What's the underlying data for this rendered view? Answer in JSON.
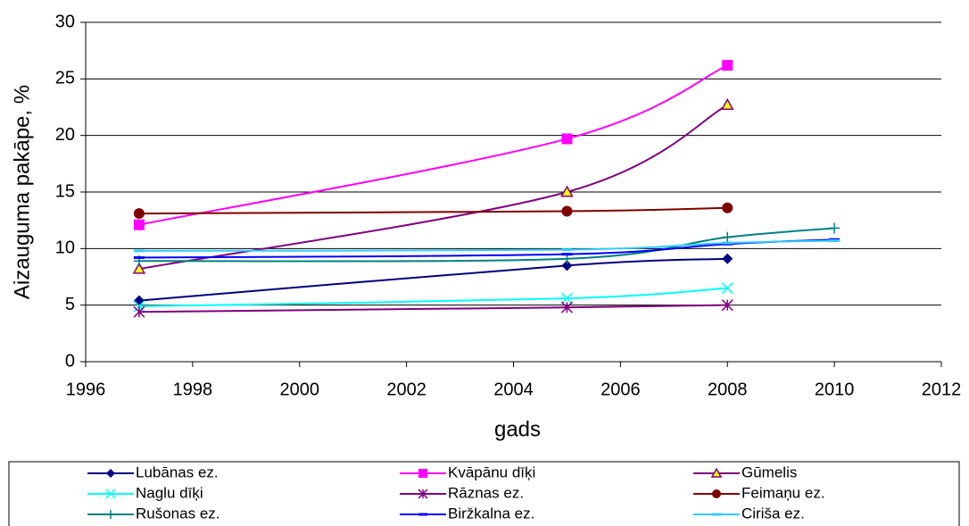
{
  "chart_data": {
    "type": "line",
    "smooth": true,
    "grid": true,
    "x_label": "gads",
    "y_label": "Aizauguma pakāpe, %",
    "xlim": [
      1996,
      2012
    ],
    "xticks": [
      1996,
      1998,
      2000,
      2002,
      2004,
      2006,
      2008,
      2010,
      2012
    ],
    "ylim": [
      0,
      30
    ],
    "yticks": [
      0,
      5,
      10,
      15,
      20,
      25,
      30
    ],
    "legend": "bottom",
    "series": [
      {
        "name": "Lubānas ez.",
        "color": "#000080",
        "marker": "diamond",
        "x": [
          1997,
          2005,
          2008
        ],
        "values": [
          5.4,
          8.5,
          9.1
        ]
      },
      {
        "name": "Kvāpānu dīķi",
        "color": "#ff00ff",
        "marker": "square",
        "x": [
          1997,
          2005,
          2008
        ],
        "values": [
          12.1,
          19.7,
          26.2
        ]
      },
      {
        "name": "Gūmelis",
        "color": "#800080",
        "marker": "triangle",
        "marker_fill": "#ffff00",
        "x": [
          1997,
          2005,
          2008
        ],
        "values": [
          8.2,
          15.0,
          22.7
        ]
      },
      {
        "name": "Naglu dīķi",
        "color": "#00ffff",
        "marker": "x",
        "x": [
          1997,
          2005,
          2008
        ],
        "values": [
          4.9,
          5.6,
          6.5
        ]
      },
      {
        "name": "Rāznas ez.",
        "color": "#800080",
        "marker": "star",
        "x": [
          1997,
          2005,
          2008
        ],
        "values": [
          4.4,
          4.8,
          5.0
        ]
      },
      {
        "name": "Feimaņu ez.",
        "color": "#800000",
        "marker": "circle",
        "x": [
          1997,
          2005,
          2008
        ],
        "values": [
          13.1,
          13.3,
          13.6
        ]
      },
      {
        "name": "Rušonas ez.",
        "color": "#008080",
        "marker": "plus",
        "x": [
          1997,
          2005,
          2008,
          2010
        ],
        "values": [
          8.9,
          9.1,
          11.0,
          11.8
        ]
      },
      {
        "name": "Biržkalna ez.",
        "color": "#0000ff",
        "marker": "dash",
        "x": [
          1997,
          2005,
          2008,
          2010
        ],
        "values": [
          9.2,
          9.5,
          10.4,
          10.8
        ]
      },
      {
        "name": "Ciriša ez.",
        "color": "#33ccff",
        "marker": "dash",
        "x": [
          1997,
          2005,
          2008,
          2010
        ],
        "values": [
          9.8,
          9.9,
          10.5,
          10.7
        ]
      }
    ]
  }
}
